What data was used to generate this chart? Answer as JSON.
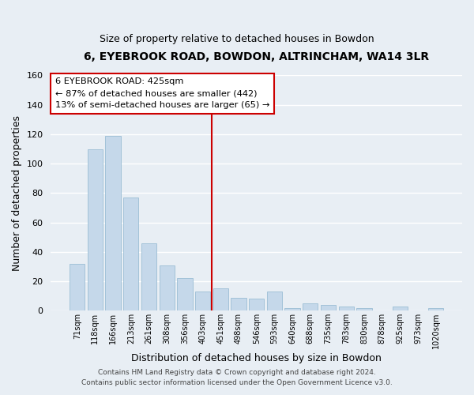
{
  "title1": "6, EYEBROOK ROAD, BOWDON, ALTRINCHAM, WA14 3LR",
  "title2": "Size of property relative to detached houses in Bowdon",
  "xlabel": "Distribution of detached houses by size in Bowdon",
  "ylabel": "Number of detached properties",
  "bar_labels": [
    "71sqm",
    "118sqm",
    "166sqm",
    "213sqm",
    "261sqm",
    "308sqm",
    "356sqm",
    "403sqm",
    "451sqm",
    "498sqm",
    "546sqm",
    "593sqm",
    "640sqm",
    "688sqm",
    "735sqm",
    "783sqm",
    "830sqm",
    "878sqm",
    "925sqm",
    "973sqm",
    "1020sqm"
  ],
  "bar_values": [
    32,
    110,
    119,
    77,
    46,
    31,
    22,
    13,
    15,
    9,
    8,
    13,
    2,
    5,
    4,
    3,
    2,
    0,
    3,
    0,
    2
  ],
  "bar_color": "#c5d8ea",
  "bar_edgecolor": "#9bbdd4",
  "vline_x": 7.5,
  "vline_color": "#cc0000",
  "annotation_title": "6 EYEBROOK ROAD: 425sqm",
  "annotation_line1": "← 87% of detached houses are smaller (442)",
  "annotation_line2": "13% of semi-detached houses are larger (65) →",
  "annotation_box_facecolor": "#ffffff",
  "annotation_box_edgecolor": "#cc0000",
  "ylim": [
    0,
    160
  ],
  "yticks": [
    0,
    20,
    40,
    60,
    80,
    100,
    120,
    140,
    160
  ],
  "footer1": "Contains HM Land Registry data © Crown copyright and database right 2024.",
  "footer2": "Contains public sector information licensed under the Open Government Licence v3.0.",
  "background_color": "#e8eef4",
  "grid_color": "#ffffff",
  "title1_fontsize": 10,
  "title2_fontsize": 9,
  "footer_fontsize": 6.5
}
